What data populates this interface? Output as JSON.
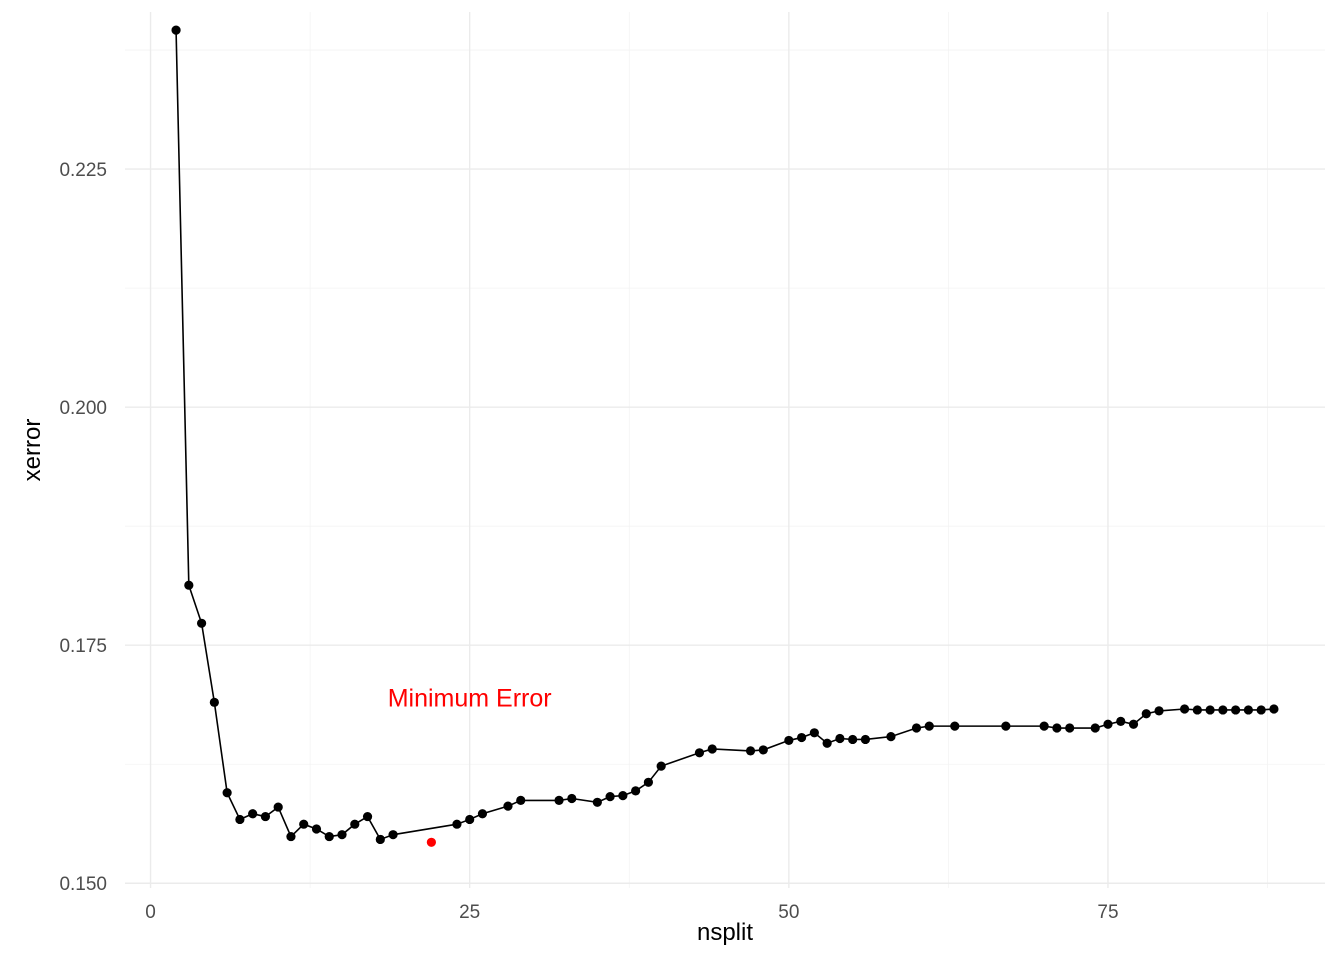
{
  "chart_data": {
    "type": "line",
    "title": "",
    "xlabel": "nsplit",
    "ylabel": "xerror",
    "xlim": [
      -2,
      92
    ],
    "ylim": [
      0.1495,
      0.2415
    ],
    "x_ticks": [
      0,
      25,
      50,
      75
    ],
    "x_tick_labels": [
      "0",
      "25",
      "50",
      "75"
    ],
    "y_ticks": [
      0.15,
      0.175,
      0.2,
      0.225
    ],
    "y_tick_labels": [
      "0.150",
      "0.175",
      "0.200",
      "0.225"
    ],
    "grid": true,
    "legend": "none",
    "line_color": "#000000",
    "series": [
      {
        "x": [
          2,
          3,
          4,
          5,
          6,
          7,
          8,
          9,
          10,
          11,
          12,
          13,
          14,
          15,
          16,
          17,
          18,
          19,
          24,
          25,
          26,
          28,
          29,
          32,
          33,
          35,
          36,
          37,
          38,
          39,
          40,
          43,
          44,
          47,
          48,
          50,
          51,
          52,
          53,
          54,
          55,
          56,
          58,
          60,
          61,
          63,
          67,
          70,
          71,
          72,
          74,
          75,
          76,
          77,
          78,
          79,
          81,
          82,
          83,
          84,
          85,
          86,
          87,
          88
        ],
        "values": [
          0.2396,
          0.1813,
          0.1773,
          0.169,
          0.1595,
          0.1567,
          0.1573,
          0.157,
          0.158,
          0.1549,
          0.1562,
          0.1557,
          0.1549,
          0.1551,
          0.1562,
          0.157,
          0.1546,
          0.1551,
          0.1562,
          0.1567,
          0.1573,
          0.1581,
          0.1587,
          0.1587,
          0.1589,
          0.1585,
          0.1591,
          0.1592,
          0.1597,
          0.1606,
          0.1623,
          0.1637,
          0.1641,
          0.1639,
          0.164,
          0.165,
          0.1653,
          0.1658,
          0.1647,
          0.1652,
          0.1651,
          0.1651,
          0.1654,
          0.1663,
          0.1665,
          0.1665,
          0.1665,
          0.1665,
          0.1663,
          0.1663,
          0.1663,
          0.1667,
          0.167,
          0.1667,
          0.1678,
          0.1681,
          0.1683,
          0.1682,
          0.1682,
          0.1682,
          0.1682,
          0.1682,
          0.1682,
          0.1683
        ]
      }
    ],
    "highlight_point": {
      "x": 22,
      "value": 0.1543,
      "color": "#ff0000"
    },
    "annotation": {
      "text": "Minimum Error",
      "x": 25,
      "value": 0.1695,
      "color": "#ff0000"
    }
  }
}
